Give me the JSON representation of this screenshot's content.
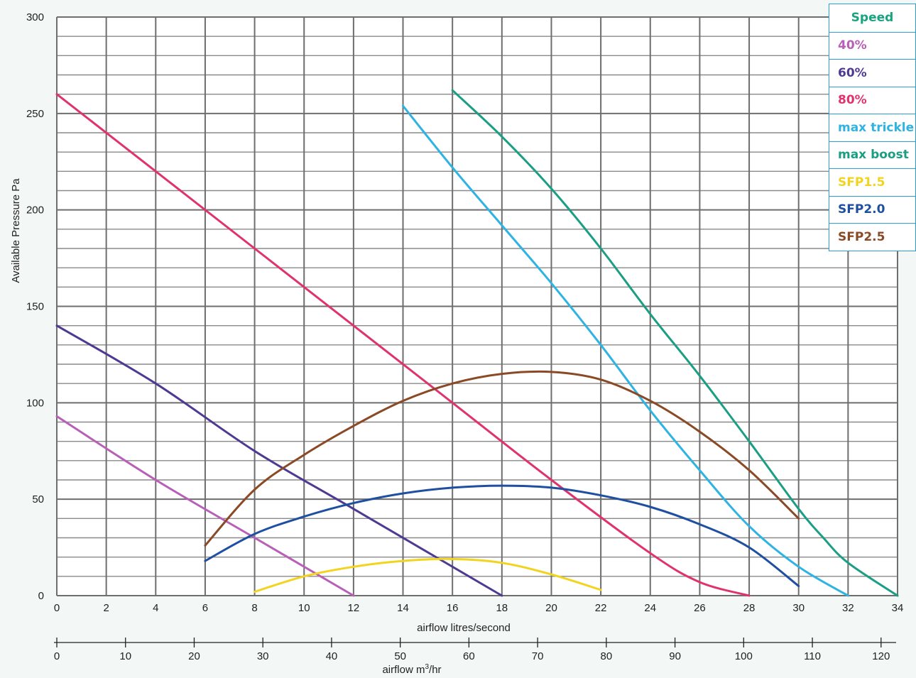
{
  "chart_data": {
    "type": "line",
    "x_label": "airflow litres/second",
    "y_label": "Available Pressure Pa",
    "x2_label_prefix": "airflow m",
    "x2_label_sup": "3",
    "x2_label_suffix": "/hr",
    "xlim": [
      0,
      34
    ],
    "ylim": [
      0,
      300
    ],
    "x_ticks": [
      "0",
      "2",
      "4",
      "6",
      "8",
      "10",
      "12",
      "14",
      "16",
      "18",
      "20",
      "22",
      "24",
      "26",
      "28",
      "30",
      "32",
      "34"
    ],
    "y_ticks": [
      "0",
      "50",
      "100",
      "150",
      "200",
      "250",
      "300"
    ],
    "x2_ticks": [
      "0",
      "10",
      "20",
      "30",
      "40",
      "50",
      "60",
      "70",
      "80",
      "90",
      "100",
      "110",
      "120"
    ],
    "grid": true,
    "legend": {
      "title": "Speed",
      "placement": "top-right",
      "items": [
        "40%",
        "60%",
        "80%",
        "max trickle",
        "max boost",
        "SFP1.5",
        "SFP2.0",
        "SFP2.5"
      ]
    },
    "series": [
      {
        "name": "40%",
        "color": "#b85fb8",
        "points": [
          [
            0,
            93
          ],
          [
            4,
            60
          ],
          [
            8,
            30
          ],
          [
            12,
            0
          ]
        ]
      },
      {
        "name": "60%",
        "color": "#4e3a92",
        "points": [
          [
            0,
            140
          ],
          [
            4,
            110
          ],
          [
            8,
            75
          ],
          [
            12,
            45
          ],
          [
            18,
            0
          ]
        ]
      },
      {
        "name": "80%",
        "color": "#e0336e",
        "points": [
          [
            0,
            260
          ],
          [
            4,
            220
          ],
          [
            8,
            180
          ],
          [
            12,
            140
          ],
          [
            16,
            100
          ],
          [
            20,
            60
          ],
          [
            24,
            22
          ],
          [
            26,
            7
          ],
          [
            28,
            0
          ]
        ]
      },
      {
        "name": "max trickle",
        "color": "#2eb3e3",
        "points": [
          [
            14,
            254
          ],
          [
            16,
            222
          ],
          [
            18,
            192
          ],
          [
            20,
            162
          ],
          [
            22,
            130
          ],
          [
            24,
            96
          ],
          [
            26,
            65
          ],
          [
            28,
            36
          ],
          [
            30,
            15
          ],
          [
            32,
            0
          ]
        ]
      },
      {
        "name": "max boost",
        "color": "#1a9e84",
        "points": [
          [
            16,
            262
          ],
          [
            18,
            238
          ],
          [
            20,
            211
          ],
          [
            22,
            180
          ],
          [
            24,
            146
          ],
          [
            26,
            114
          ],
          [
            28,
            80
          ],
          [
            30,
            45
          ],
          [
            31,
            30
          ],
          [
            32,
            17
          ],
          [
            34,
            0
          ]
        ]
      },
      {
        "name": "SFP1.5",
        "color": "#f2d41f",
        "points": [
          [
            8,
            2
          ],
          [
            10,
            10
          ],
          [
            12,
            15
          ],
          [
            14,
            18
          ],
          [
            16,
            19
          ],
          [
            18,
            17
          ],
          [
            20,
            11
          ],
          [
            22,
            3
          ]
        ]
      },
      {
        "name": "SFP2.0",
        "color": "#1f4fa0",
        "points": [
          [
            6,
            18
          ],
          [
            8,
            32
          ],
          [
            10,
            41
          ],
          [
            12,
            48
          ],
          [
            14,
            53
          ],
          [
            16,
            56
          ],
          [
            18,
            57
          ],
          [
            20,
            56
          ],
          [
            22,
            52
          ],
          [
            24,
            46
          ],
          [
            26,
            37
          ],
          [
            28,
            25
          ],
          [
            30,
            5
          ]
        ]
      },
      {
        "name": "SFP2.5",
        "color": "#8a4a26",
        "points": [
          [
            6,
            26
          ],
          [
            8,
            55
          ],
          [
            10,
            73
          ],
          [
            12,
            88
          ],
          [
            14,
            101
          ],
          [
            16,
            110
          ],
          [
            18,
            115
          ],
          [
            20,
            116
          ],
          [
            22,
            112
          ],
          [
            24,
            101
          ],
          [
            26,
            85
          ],
          [
            28,
            65
          ],
          [
            30,
            40
          ]
        ]
      }
    ]
  }
}
